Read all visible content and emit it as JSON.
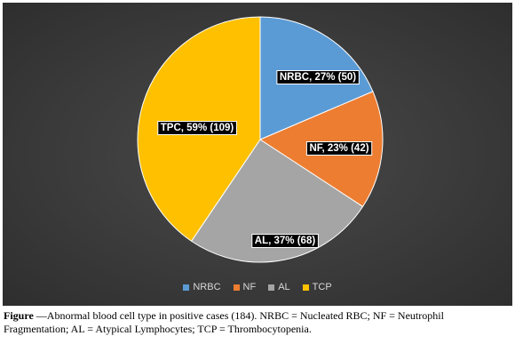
{
  "chart_data": {
    "type": "pie",
    "categories": [
      "NRBC",
      "NF",
      "AL",
      "TCP"
    ],
    "slices": [
      {
        "key": "nrbc",
        "label": "NRBC, 27% (50)",
        "value": 50,
        "color": "#5b9bd5"
      },
      {
        "key": "nf",
        "label": "NF, 23% (42)",
        "value": 42,
        "color": "#ed7d31"
      },
      {
        "key": "al",
        "label": "AL, 37% (68)",
        "value": 68,
        "color": "#a5a5a5"
      },
      {
        "key": "tcp",
        "label": "TPC, 59% (109)",
        "value": 109,
        "color": "#ffc000"
      }
    ],
    "legend": {
      "position": "bottom",
      "items": [
        {
          "label": "NRBC",
          "color": "#5b9bd5"
        },
        {
          "label": "NF",
          "color": "#ed7d31"
        },
        {
          "label": "AL",
          "color": "#a5a5a5"
        },
        {
          "label": "TCP",
          "color": "#ffc000"
        }
      ]
    }
  },
  "caption": {
    "prefix": "Figure",
    "text": " —Abnormal blood cell type in positive cases (184). NRBC = Nucleated RBC; NF = Neutrophil Fragmentation; AL = Atypical Lymphocytes; TCP = Thrombocytopenia."
  }
}
